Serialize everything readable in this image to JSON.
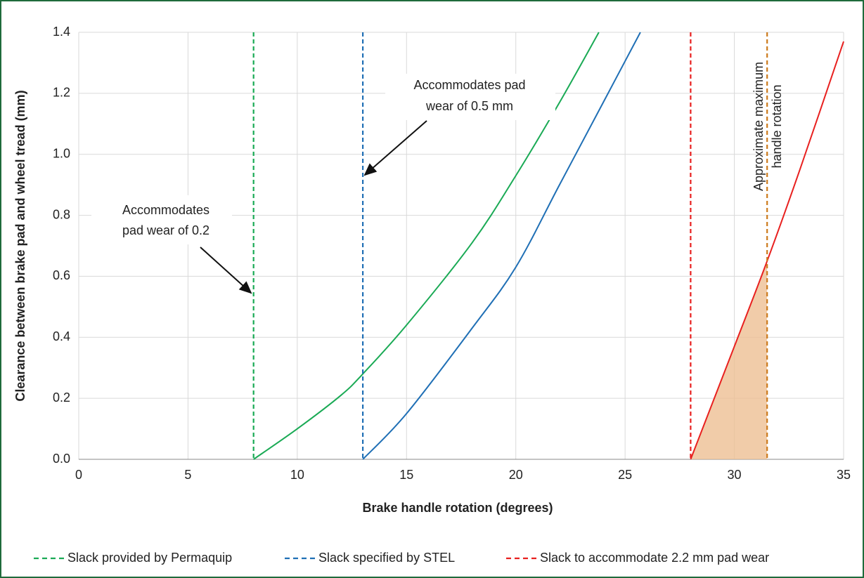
{
  "chart_data": {
    "type": "line",
    "x_label": "Brake handle rotation (degrees)",
    "y_label": "Clearance between brake pad and wheel tread (mm)",
    "xlim": [
      0,
      35
    ],
    "xticks": [
      0,
      5,
      10,
      15,
      20,
      25,
      30,
      35
    ],
    "ylim": [
      0,
      1.4
    ],
    "yticks": [
      {
        "value": 0,
        "label": "0.0"
      },
      0.2,
      0.4,
      0.6,
      0.8,
      {
        "value": 1,
        "label": "1.0"
      },
      1.2,
      1.4
    ],
    "grid": true,
    "curves": [
      {
        "color": "#1aaa55",
        "x": [
          8,
          10,
          12,
          13,
          15,
          18,
          20,
          22,
          23.8
        ],
        "y": [
          0,
          0.1,
          0.21,
          0.28,
          0.44,
          0.71,
          0.93,
          1.17,
          1.4
        ]
      },
      {
        "color": "#1f6fb5",
        "x": [
          13,
          15,
          18,
          20,
          22,
          24,
          25.7
        ],
        "y": [
          0,
          0.15,
          0.43,
          0.63,
          0.9,
          1.17,
          1.4
        ]
      },
      {
        "color": "#e8201f",
        "x": [
          28,
          30,
          31.5,
          33,
          35
        ],
        "y": [
          0,
          0.37,
          0.65,
          0.95,
          1.37
        ]
      }
    ],
    "vlines": [
      {
        "name": "Slack provided by Permaquip",
        "color": "#1aaa55",
        "x": 8
      },
      {
        "name": "Slack specified by STEL",
        "color": "#1f6fb5",
        "x": 13
      },
      {
        "name": "Slack to accommodate 2.2 mm pad wear",
        "color": "#e8201f",
        "x": 28
      },
      {
        "color": "#cc7a1c",
        "x": 31.5
      }
    ],
    "shade_color": "#eebf94",
    "annotations": [
      [
        "Accommodates",
        "pad wear of 0.2"
      ],
      [
        "Accommodates pad",
        "wear of 0.5 mm"
      ],
      [
        "Approximate maximum",
        "handle rotation"
      ]
    ]
  }
}
